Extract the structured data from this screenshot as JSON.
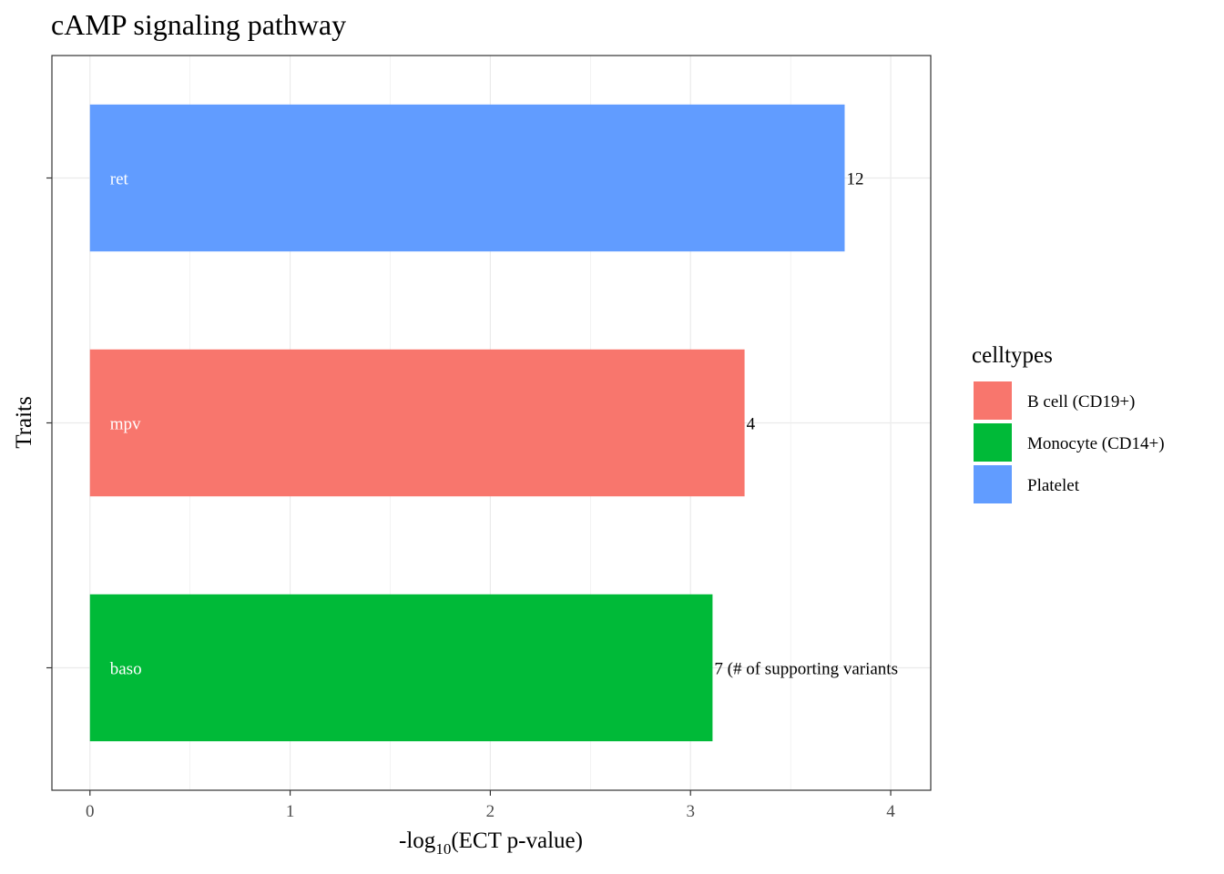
{
  "chart_data": {
    "type": "bar",
    "orientation": "horizontal",
    "title": "cAMP signaling pathway",
    "xlabel_prefix": "-log",
    "xlabel_sub": "10",
    "xlabel_suffix": "(ECT p-value)",
    "ylabel": "Traits",
    "xlim": [
      -0.19,
      4.2
    ],
    "x_ticks": [
      0,
      1,
      2,
      3,
      4
    ],
    "grid": true,
    "categories": [
      "ret",
      "mpv",
      "baso"
    ],
    "values": [
      3.77,
      3.27,
      3.11
    ],
    "bar_annotations": [
      "12",
      "4",
      "7 (# of supporting variants"
    ],
    "celltype": [
      "Platelet",
      "B cell (CD19+)",
      "Monocyte (CD14+)"
    ],
    "legend": {
      "title": "celltypes",
      "placement": "right",
      "entries": [
        {
          "label": "B cell (CD19+)",
          "color": "#F8766D"
        },
        {
          "label": "Monocyte (CD14+)",
          "color": "#00BA38"
        },
        {
          "label": "Platelet",
          "color": "#619CFF"
        }
      ]
    }
  }
}
